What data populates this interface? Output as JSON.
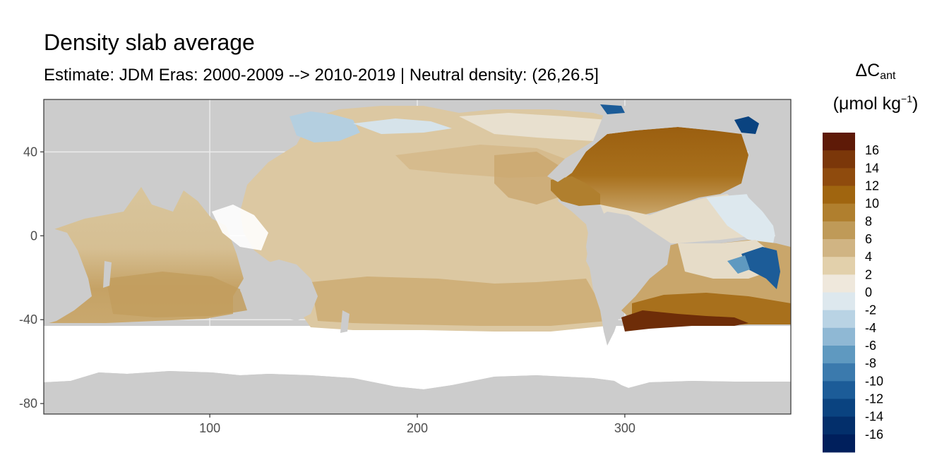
{
  "title": "Density slab average",
  "subtitle": "Estimate: JDM Eras: 2000-2009 --> 2010-2019 | Neutral density: (26,26.5]",
  "legend": {
    "title_symbol": "ΔC",
    "title_subscript": "ant",
    "unit_prefix": "(μmol kg",
    "unit_superscript": "−1",
    "unit_suffix": ")",
    "labels": [
      "16",
      "14",
      "12",
      "10",
      "8",
      "6",
      "4",
      "2",
      "0",
      "-2",
      "-4",
      "-6",
      "-8",
      "-10",
      "-12",
      "-14",
      "-16"
    ],
    "colors": [
      "#5e1a07",
      "#7b3709",
      "#8f4b0d",
      "#a0650f",
      "#b07f2e",
      "#bf9a58",
      "#d0b483",
      "#e2d0ab",
      "#efe8dc",
      "#dde8ee",
      "#b9d3e4",
      "#8fb8d4",
      "#5f99c0",
      "#3b7aad",
      "#1c5c98",
      "#0a4380",
      "#032f6b",
      "#001f5c"
    ]
  },
  "chart_data": {
    "type": "heatmap",
    "title": "Density slab average",
    "subtitle": "Estimate: JDM Eras: 2000-2009 --> 2010-2019 | Neutral density: (26,26.5]",
    "xlabel": "",
    "ylabel": "",
    "x_ticks": [
      100,
      200,
      300
    ],
    "y_ticks": [
      40,
      0,
      -40,
      -80
    ],
    "xlim": [
      20,
      380
    ],
    "ylim": [
      -85,
      65
    ],
    "grid": true,
    "legend_position": "right",
    "colorbar_breaks": [
      -16,
      -14,
      -12,
      -10,
      -8,
      -6,
      -4,
      -2,
      0,
      2,
      4,
      6,
      8,
      10,
      12,
      14,
      16
    ],
    "colors": {
      "land": "#cccccc",
      "no_data": "#ffffff",
      "panel_border": "#333333",
      "grid": "#ebebeb"
    }
  }
}
